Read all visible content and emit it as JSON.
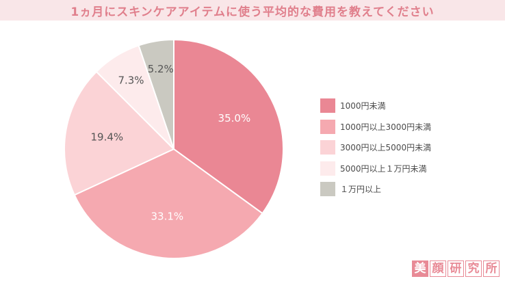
{
  "title": "1ヵ月にスキンケアアイテムに使う平均的な費用を教えてください",
  "chart_data": {
    "type": "pie",
    "title": "1ヵ月にスキンケアアイテムに使う平均的な費用を教えてください",
    "categories": [
      "1000円未満",
      "1000円以上3000円未満",
      "3000円以上5000円未満",
      "5000円以上１万円未満",
      "１万円以上"
    ],
    "values": [
      35.0,
      33.1,
      19.4,
      7.3,
      5.2
    ],
    "value_labels": [
      "35.0%",
      "33.1%",
      "19.4%",
      "7.3%",
      "5.2%"
    ],
    "colors": [
      "#ea8794",
      "#f5a9b0",
      "#fbd3d6",
      "#fdebec",
      "#cac9c1"
    ],
    "label_colors": [
      "#ffffff",
      "#ffffff",
      "#555555",
      "#555555",
      "#555555"
    ],
    "start_angle_deg": 0,
    "direction": "clockwise",
    "legend_position": "right"
  },
  "brand": {
    "chars": [
      "美",
      "顔",
      "研",
      "究",
      "所"
    ],
    "color": "#e88a96"
  }
}
